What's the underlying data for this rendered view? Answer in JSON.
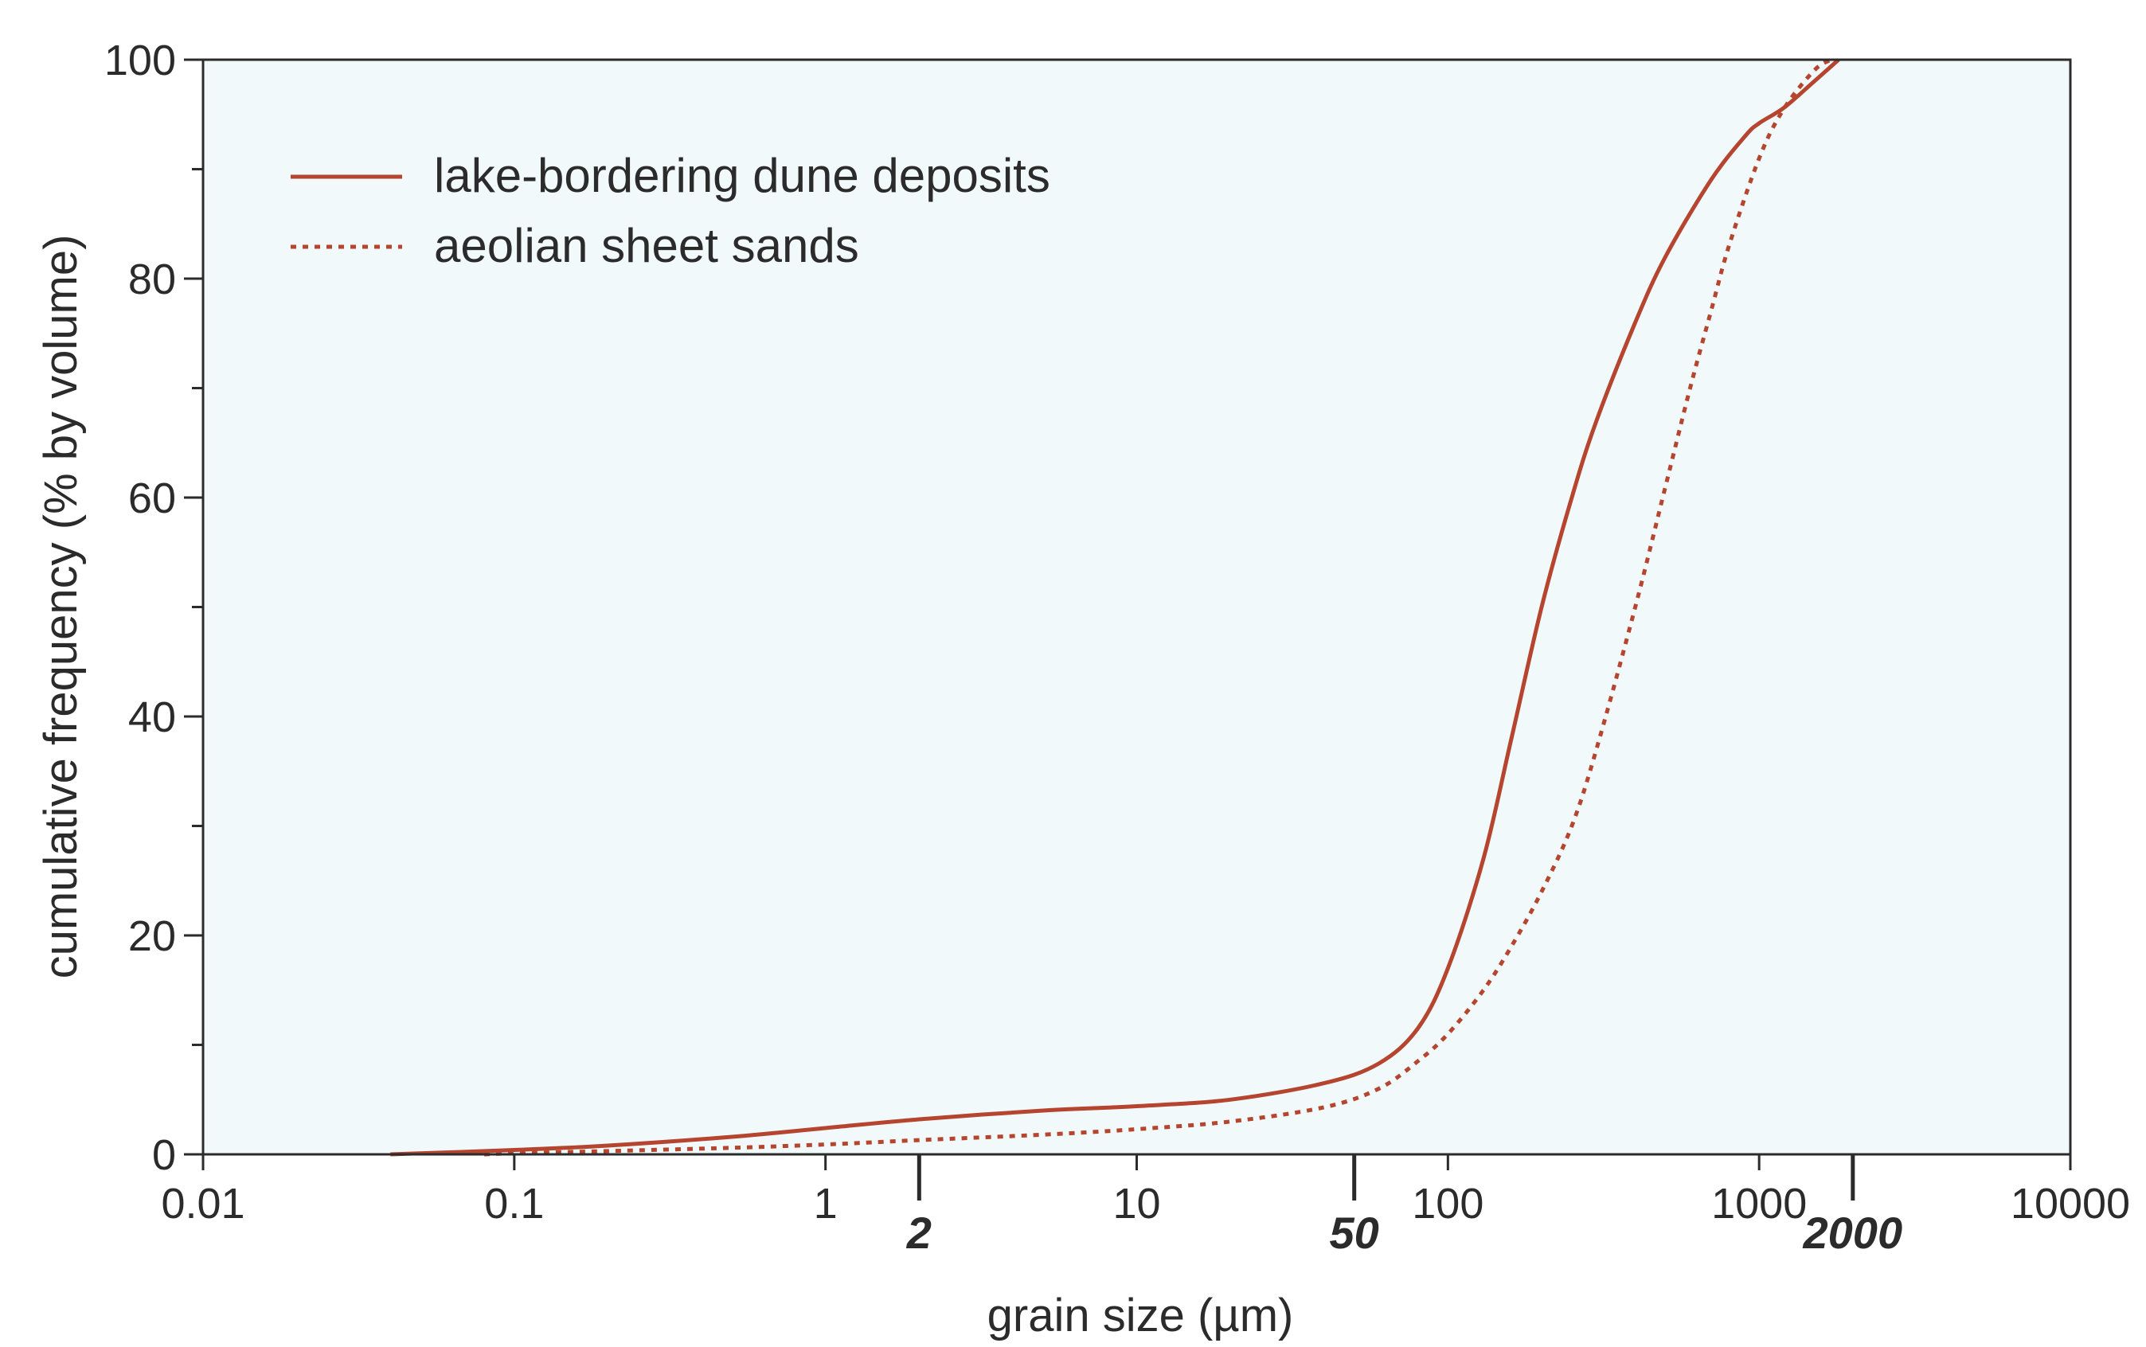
{
  "chart_data": {
    "type": "line",
    "xlabel": "grain size (µm)",
    "ylabel": "cumulative frequency (% by volume)",
    "x_scale": "log",
    "xlim": [
      0.01,
      10000
    ],
    "ylim": [
      0,
      100
    ],
    "x_tick_labels": [
      "0.01",
      "0.1",
      "1",
      "10",
      "100",
      "1000",
      "10000"
    ],
    "x_special_ticks": [
      {
        "value": 2,
        "label": "2"
      },
      {
        "value": 50,
        "label": "50"
      },
      {
        "value": 2000,
        "label": "2000"
      }
    ],
    "y_ticks": [
      0,
      20,
      40,
      60,
      80,
      100
    ],
    "y_tick_labels": [
      "0",
      "20",
      "40",
      "60",
      "80",
      "100"
    ],
    "grid": false,
    "legend_position": "top-left",
    "background_color": "#f1f9fb",
    "series": [
      {
        "name": "lake-bordering dune deposits",
        "style": "solid",
        "color": "#b5452f",
        "x": [
          0.04,
          0.1,
          0.2,
          0.5,
          1,
          2,
          5,
          10,
          20,
          40,
          60,
          80,
          100,
          130,
          160,
          200,
          250,
          300,
          400,
          500,
          700,
          900,
          1000,
          1200,
          1500,
          1800
        ],
        "y": [
          0,
          0.4,
          0.8,
          1.6,
          2.4,
          3.2,
          4.0,
          4.4,
          5.0,
          6.5,
          8.3,
          11.5,
          17.0,
          27.0,
          38.0,
          50.0,
          60.0,
          67.0,
          76.0,
          82.0,
          89.0,
          93.0,
          94.2,
          95.6,
          98.0,
          100
        ]
      },
      {
        "name": "aeolian sheet sands",
        "style": "dotted",
        "color": "#b5452f",
        "x": [
          0.08,
          0.1,
          0.2,
          0.5,
          1,
          2,
          5,
          10,
          20,
          40,
          60,
          80,
          100,
          130,
          160,
          200,
          250,
          300,
          400,
          500,
          600,
          700,
          800,
          1000,
          1200,
          1500,
          1700
        ],
        "y": [
          0,
          0.1,
          0.3,
          0.6,
          0.9,
          1.3,
          1.8,
          2.3,
          3.0,
          4.3,
          6.0,
          8.5,
          11.0,
          15.0,
          19.0,
          24.0,
          30.0,
          37.0,
          50.0,
          61.0,
          70.0,
          77.0,
          83.0,
          91.0,
          95.5,
          99.0,
          100
        ]
      }
    ]
  }
}
